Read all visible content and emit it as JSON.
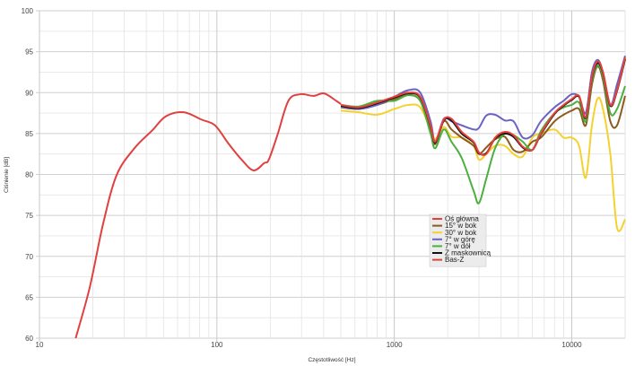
{
  "chart_data": {
    "type": "line",
    "title": "",
    "xlabel": "Częstotliwość [Hz]",
    "ylabel": "Ciśnienie [dB]",
    "xscale": "log",
    "xlim": [
      10,
      20000
    ],
    "ylim": [
      60,
      100
    ],
    "x_ticks": [
      "10",
      "100",
      "1000",
      "10000"
    ],
    "y_ticks": [
      "60",
      "65",
      "70",
      "75",
      "80",
      "85",
      "90",
      "95",
      "100"
    ],
    "grid": true,
    "legend_position": "center-right",
    "series": [
      {
        "name": "Oś główna",
        "color": "#e8403a",
        "x": [
          500,
          630,
          800,
          1000,
          1200,
          1400,
          1600,
          1700,
          1900,
          2100,
          2400,
          2800,
          3000,
          3300,
          3700,
          4200,
          4700,
          5300,
          6000,
          6700,
          8000,
          9000,
          10000,
          11000,
          12000,
          13000,
          14000,
          15000,
          16500,
          18000,
          20000
        ],
        "y": [
          88.5,
          88.2,
          88.8,
          89.5,
          90,
          89.5,
          86,
          84,
          86.7,
          86.8,
          85.2,
          84,
          82.7,
          82.5,
          84.5,
          85.2,
          84.8,
          83.4,
          83,
          85,
          87.5,
          88.5,
          89.2,
          89.6,
          87,
          92,
          93.8,
          92.5,
          88.5,
          90.3,
          94.3
        ]
      },
      {
        "name": "15° w bok",
        "color": "#8b5a1e",
        "x": [
          500,
          630,
          800,
          1000,
          1200,
          1400,
          1600,
          1700,
          1900,
          2100,
          2400,
          2800,
          3000,
          3300,
          3700,
          4200,
          4700,
          5300,
          6000,
          6700,
          8000,
          9000,
          10000,
          11000,
          12000,
          13000,
          14000,
          15000,
          16500,
          18000,
          20000
        ],
        "y": [
          88.2,
          88,
          88.5,
          89.2,
          89.7,
          89,
          85.5,
          83.7,
          86.5,
          85.5,
          84.5,
          83.5,
          82.5,
          83.3,
          84.3,
          84.6,
          83,
          82.8,
          84,
          84.5,
          86.5,
          87.3,
          87.8,
          88,
          86,
          91,
          93.2,
          91.5,
          86.5,
          86,
          89.6
        ]
      },
      {
        "name": "30° w bok",
        "color": "#f5d130",
        "x": [
          500,
          630,
          800,
          1000,
          1200,
          1400,
          1600,
          1700,
          1900,
          2100,
          2400,
          2800,
          3000,
          3300,
          3700,
          4200,
          4700,
          5300,
          6000,
          6700,
          8000,
          9000,
          10000,
          11000,
          12000,
          13000,
          14000,
          15000,
          16500,
          18000,
          20000
        ],
        "y": [
          87.8,
          87.6,
          87.3,
          88,
          88.5,
          88.2,
          85.5,
          84.3,
          85.8,
          84.6,
          84.5,
          83.5,
          81.8,
          82.5,
          83.5,
          83.5,
          82.5,
          82.2,
          84.5,
          85,
          85.5,
          84.5,
          84.5,
          83.5,
          79.6,
          86,
          89.3,
          88,
          82.5,
          73.5,
          74.5
        ]
      },
      {
        "name": "7° w górę",
        "color": "#6a63c4",
        "x": [
          500,
          630,
          800,
          1000,
          1200,
          1400,
          1600,
          1700,
          1900,
          2100,
          2400,
          2800,
          3000,
          3300,
          3700,
          4200,
          4700,
          5300,
          6000,
          6700,
          8000,
          9000,
          10000,
          11000,
          12000,
          13000,
          14000,
          15000,
          16500,
          18000,
          20000
        ],
        "y": [
          88.3,
          88,
          88.5,
          89.5,
          90.3,
          90,
          86.5,
          84,
          86.8,
          86.5,
          86,
          85.5,
          85.7,
          87.2,
          87.3,
          86.6,
          86.5,
          84.5,
          84.8,
          86.5,
          88.2,
          89,
          89.8,
          89.5,
          87.5,
          92.5,
          94,
          92.5,
          88.5,
          91,
          94.5
        ]
      },
      {
        "name": "7° w dół",
        "color": "#4caf3f",
        "x": [
          500,
          630,
          800,
          1000,
          1200,
          1400,
          1600,
          1700,
          1900,
          2100,
          2400,
          2800,
          3000,
          3300,
          3700,
          4200,
          4700,
          5300,
          6000,
          6700,
          8000,
          9000,
          10000,
          11000,
          12000,
          13000,
          14000,
          15000,
          16500,
          18000,
          20000
        ],
        "y": [
          88.5,
          88.3,
          89,
          89,
          89.7,
          89,
          85,
          83.2,
          85.5,
          84,
          82,
          78,
          76.5,
          79.5,
          83.2,
          85,
          84.8,
          84,
          83,
          85.3,
          87.5,
          88.2,
          88.5,
          88.8,
          86.5,
          91.5,
          93.3,
          92,
          87.5,
          88,
          90.8
        ]
      },
      {
        "name": "Z maskownicą",
        "color": "#111111",
        "x": [
          500,
          630,
          800,
          1000,
          1200,
          1400,
          1600,
          1700,
          1900,
          2100,
          2400,
          2800,
          3000,
          3300,
          3700,
          4200,
          4700,
          5300,
          6000,
          6700,
          8000,
          9000,
          10000,
          11000,
          12000,
          13000,
          14000,
          15000,
          16500,
          18000,
          20000
        ],
        "y": [
          88.4,
          88.1,
          88.7,
          89.4,
          89.9,
          89.4,
          85.9,
          83.9,
          86.6,
          86.6,
          85,
          83.9,
          82.6,
          82.6,
          84.4,
          85,
          84.6,
          83.3,
          83,
          84.9,
          87.4,
          88.4,
          89.1,
          89.5,
          86.9,
          91.9,
          93.6,
          92.4,
          88.4,
          90.2,
          94.1
        ]
      },
      {
        "name": "Bas-Z",
        "color": "#e04040",
        "x": [
          16,
          19.2,
          22.8,
          27.2,
          34.3,
          43.3,
          51.5,
          65,
          82,
          97.6,
          116,
          138,
          161,
          185,
          196,
          220,
          253,
          295,
          350,
          402,
          470,
          500
        ],
        "y": [
          60,
          66.2,
          73.9,
          79.9,
          83.2,
          85.4,
          87.1,
          87.6,
          86.7,
          86,
          83.8,
          81.8,
          80.5,
          81.4,
          81.8,
          84.9,
          89,
          89.8,
          89.6,
          89.9,
          89,
          88.6
        ]
      }
    ]
  }
}
